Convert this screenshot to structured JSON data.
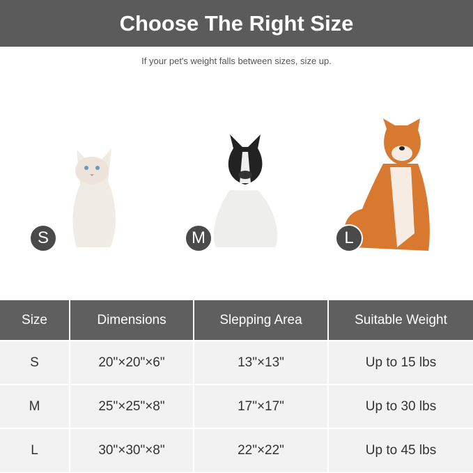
{
  "header": {
    "title": "Choose The Right Size",
    "subtitle": "If your pet's weight falls between sizes, size up."
  },
  "pets": [
    {
      "animal": "cat",
      "badge": "S"
    },
    {
      "animal": "french bulldog",
      "badge": "M"
    },
    {
      "animal": "shiba inu",
      "badge": "L"
    }
  ],
  "colors": {
    "header_bg": "#5b5b5b",
    "row_bg": "#f2f2f2",
    "badge_bg": "#4a4a4a"
  },
  "table": {
    "columns": [
      "Size",
      "Dimensions",
      "Slepping Area",
      "Suitable Weight"
    ],
    "rows": [
      [
        "S",
        "20\"×20\"×6\"",
        "13\"×13\"",
        "Up to 15 lbs"
      ],
      [
        "M",
        "25\"×25\"×8\"",
        "17\"×17\"",
        "Up to 30 lbs"
      ],
      [
        "L",
        "30\"×30\"×8\"",
        "22\"×22\"",
        "Up to 45 lbs"
      ]
    ]
  }
}
